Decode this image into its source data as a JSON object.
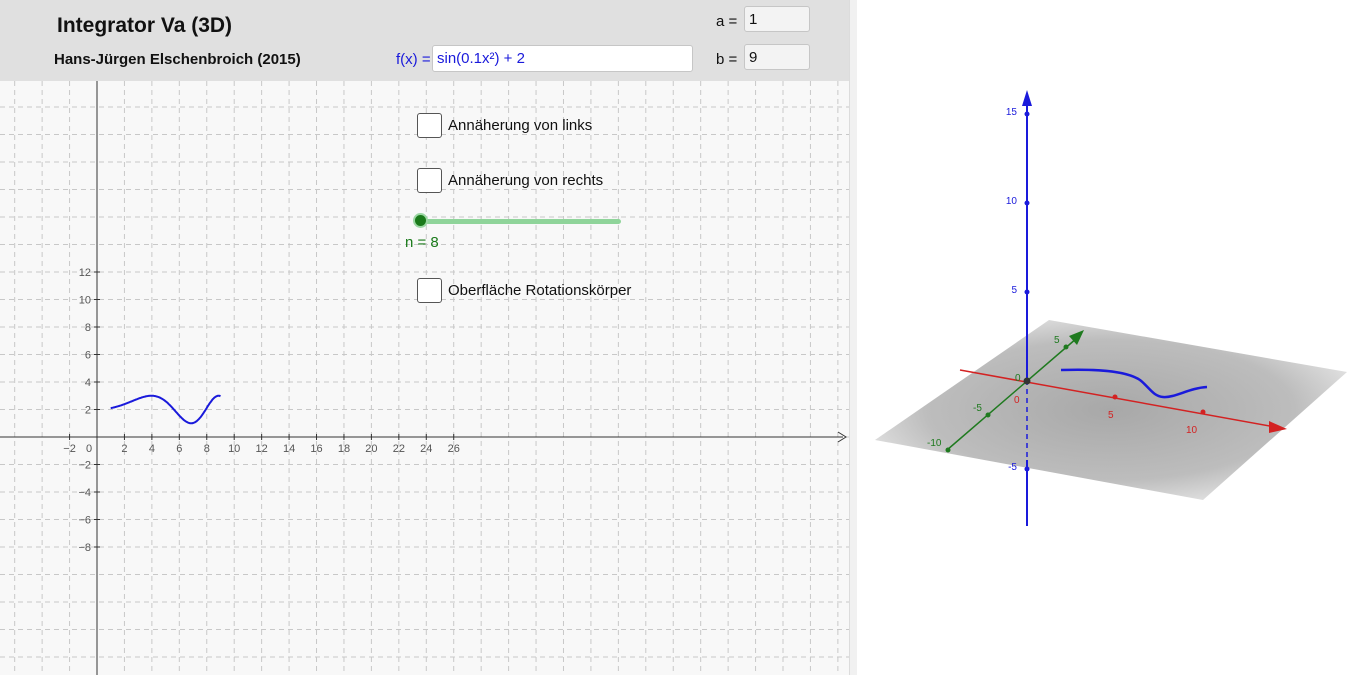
{
  "header": {
    "title": "Integrator Va  (3D)",
    "author": "Hans-Jürgen Elschenbroich (2015)",
    "a_label": "a =",
    "a_value": "1",
    "b_label": "b =",
    "b_value": "9",
    "fx_label": "f(x) =",
    "fx_value": "sin(0.1x²) + 2"
  },
  "controls": {
    "checkbox_left": {
      "label": "Annäherung von links",
      "checked": false
    },
    "checkbox_right": {
      "label": "Annäherung von rechts",
      "checked": false
    },
    "checkbox_surface": {
      "label": "Oberfläche Rotationskörper",
      "checked": false
    },
    "slider": {
      "label": "n = 8",
      "value": 8
    }
  },
  "graph2d": {
    "x_ticks": [
      "−2",
      "0",
      "2",
      "4",
      "6",
      "8",
      "10",
      "12",
      "14",
      "16",
      "18",
      "20",
      "22",
      "24",
      "26"
    ],
    "y_ticks": [
      "12",
      "10",
      "8",
      "6",
      "4",
      "2",
      "−2",
      "−4",
      "−6",
      "−8"
    ],
    "function": "sin(0.1x²) + 2",
    "domain": [
      1,
      9
    ],
    "curve_color": "#1a1adb"
  },
  "graph3d": {
    "z_ticks": [
      "15",
      "10",
      "5",
      "-5"
    ],
    "x_ticks": [
      "5",
      "10"
    ],
    "y_ticks": [
      "5",
      "-5",
      "-10"
    ],
    "origin_labels": [
      "0",
      "0"
    ],
    "colors": {
      "x_axis": "#d32222",
      "y_axis": "#1f7a1f",
      "z_axis": "#1a1adb",
      "curve": "#1a1adb"
    }
  }
}
